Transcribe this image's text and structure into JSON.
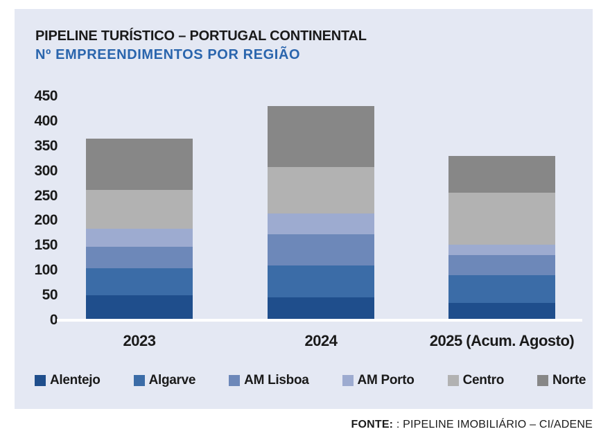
{
  "panel": {
    "title": "PIPELINE TURÍSTICO – PORTUGAL CONTINENTAL",
    "subtitle": "Nº EMPREENDIMENTOS POR REGIÃO"
  },
  "footer": {
    "label": "FONTE:",
    "text": " : PIPELINE IMOBILIÁRIO – CI/ADENE"
  },
  "colors": {
    "panel_bg": "#e4e8f3",
    "subtitle_blue": "#2a65ad",
    "axis_line": "#ffffff",
    "text": "#1a1a1a"
  },
  "chart_data": {
    "type": "bar",
    "stacked": true,
    "title": "PIPELINE TURÍSTICO – PORTUGAL CONTINENTAL",
    "subtitle": "Nº EMPREENDIMENTOS POR REGIÃO",
    "categories": [
      "2023",
      "2024",
      "2025 (Acum. Agosto)"
    ],
    "series": [
      {
        "name": "Alentejo",
        "color": "#1f4e8c",
        "values": [
          50,
          46,
          35
        ]
      },
      {
        "name": "Algarve",
        "color": "#3b6ca7",
        "values": [
          55,
          64,
          55
        ]
      },
      {
        "name": "AM Lisboa",
        "color": "#6d88b9",
        "values": [
          43,
          63,
          41
        ]
      },
      {
        "name": "AM Porto",
        "color": "#9dabd0",
        "values": [
          36,
          42,
          21
        ]
      },
      {
        "name": "Centro",
        "color": "#b2b2b2",
        "values": [
          78,
          93,
          105
        ]
      },
      {
        "name": "Norte",
        "color": "#878787",
        "values": [
          103,
          122,
          73
        ]
      }
    ],
    "totals": [
      365,
      430,
      330
    ],
    "ylim": [
      0,
      450
    ],
    "yticks": [
      0,
      50,
      100,
      150,
      200,
      250,
      300,
      350,
      400,
      450
    ],
    "grid": false,
    "legend_position": "bottom",
    "xlabel": "",
    "ylabel": ""
  }
}
